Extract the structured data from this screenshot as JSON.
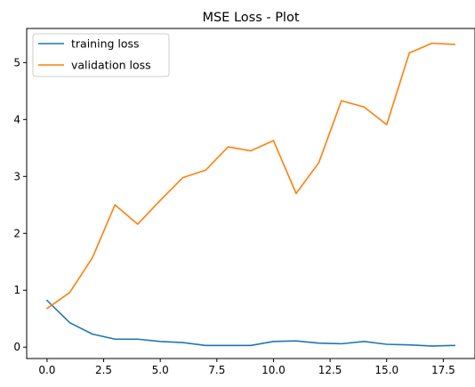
{
  "chart_data": {
    "type": "line",
    "title": "MSE Loss - Plot",
    "xlabel": "",
    "ylabel": "",
    "x": [
      0,
      1,
      2,
      3,
      4,
      5,
      6,
      7,
      8,
      9,
      10,
      11,
      12,
      13,
      14,
      15,
      16,
      17,
      18
    ],
    "xlim": [
      -0.9,
      18.9
    ],
    "ylim": [
      -0.2,
      5.6
    ],
    "xticks": [
      0.0,
      2.5,
      5.0,
      7.5,
      10.0,
      12.5,
      15.0,
      17.5
    ],
    "xtick_labels": [
      "0.0",
      "2.5",
      "5.0",
      "7.5",
      "10.0",
      "12.5",
      "15.0",
      "17.5"
    ],
    "yticks": [
      0,
      1,
      2,
      3,
      4,
      5
    ],
    "ytick_labels": [
      "0",
      "1",
      "2",
      "3",
      "4",
      "5"
    ],
    "grid": false,
    "legend_position": "top-left",
    "series": [
      {
        "name": "training loss",
        "color": "#1f77b4",
        "values": [
          0.82,
          0.43,
          0.23,
          0.14,
          0.14,
          0.1,
          0.08,
          0.03,
          0.03,
          0.03,
          0.1,
          0.11,
          0.07,
          0.06,
          0.1,
          0.05,
          0.04,
          0.02,
          0.03
        ]
      },
      {
        "name": "validation loss",
        "color": "#ff7f0e",
        "values": [
          0.68,
          0.96,
          1.57,
          2.5,
          2.16,
          2.58,
          2.98,
          3.11,
          3.52,
          3.45,
          3.63,
          2.7,
          3.24,
          4.33,
          4.22,
          3.91,
          5.17,
          5.34,
          5.32
        ]
      }
    ]
  }
}
